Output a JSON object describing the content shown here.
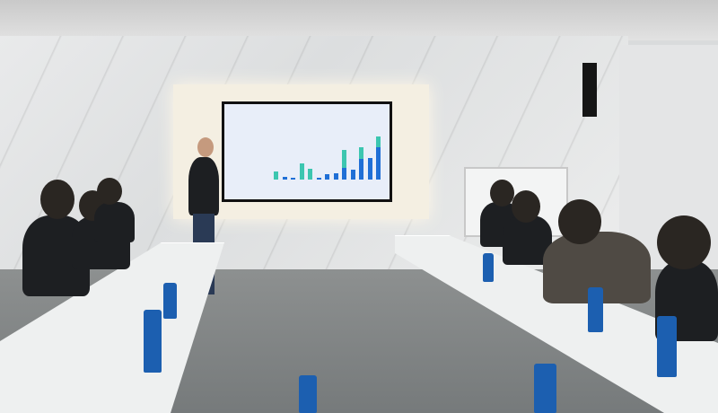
{
  "scene": {
    "setting": "meeting-room",
    "colors": {
      "wall": "#e9eaeb",
      "screen": "#e8eef9",
      "bars": "#1f6fd6",
      "accent_bars": "#3cc6b0",
      "bottles": "#1c5fb0",
      "floor": "#7f8384"
    }
  },
  "screen_chart": {
    "bars": [
      0.15,
      0.05,
      0.04,
      0.3,
      0.2,
      0.04,
      0.1,
      0.12,
      0.55,
      0.18,
      0.6,
      0.4,
      0.8
    ],
    "teal_fraction": [
      1,
      0,
      0,
      1,
      1,
      0,
      0,
      0,
      0.6,
      0,
      0.35,
      0,
      0.25
    ]
  }
}
